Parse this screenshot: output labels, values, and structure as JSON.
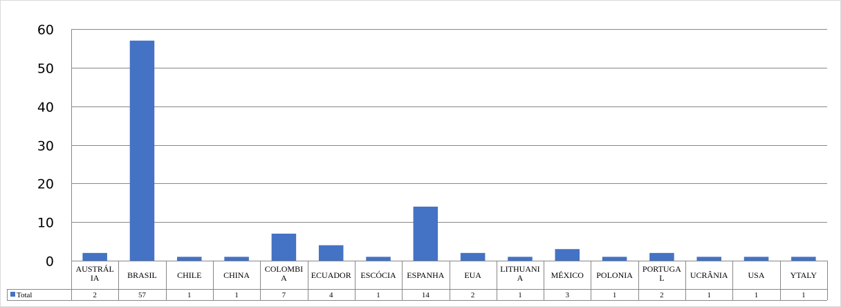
{
  "chart_data": {
    "type": "bar",
    "categories": [
      [
        "AUSTRÁL",
        "IA"
      ],
      [
        "BRASIL"
      ],
      [
        "CHILE"
      ],
      [
        "CHINA"
      ],
      [
        "COLOMBI",
        "A"
      ],
      [
        "ECUADOR"
      ],
      [
        "ESCÓCIA"
      ],
      [
        "ESPANHA"
      ],
      [
        "EUA"
      ],
      [
        "LITHUANI",
        "A"
      ],
      [
        "MÉXICO"
      ],
      [
        "POLONIA"
      ],
      [
        "PORTUGA",
        "L"
      ],
      [
        "UCRÂNIA"
      ],
      [
        "USA"
      ],
      [
        "YTALY"
      ]
    ],
    "series": [
      {
        "name": "Total",
        "values": [
          2,
          57,
          1,
          1,
          7,
          4,
          1,
          14,
          2,
          1,
          3,
          1,
          2,
          1,
          1,
          1
        ]
      }
    ],
    "ylim": [
      0,
      60
    ],
    "yticks": [
      "0",
      "10",
      "20",
      "30",
      "40",
      "50",
      "60"
    ],
    "grid": true,
    "data_table": true,
    "colors": {
      "bar": "#4472C4",
      "grid": "#868686",
      "axis": "#868686",
      "frame": "#d9d9d9"
    }
  }
}
